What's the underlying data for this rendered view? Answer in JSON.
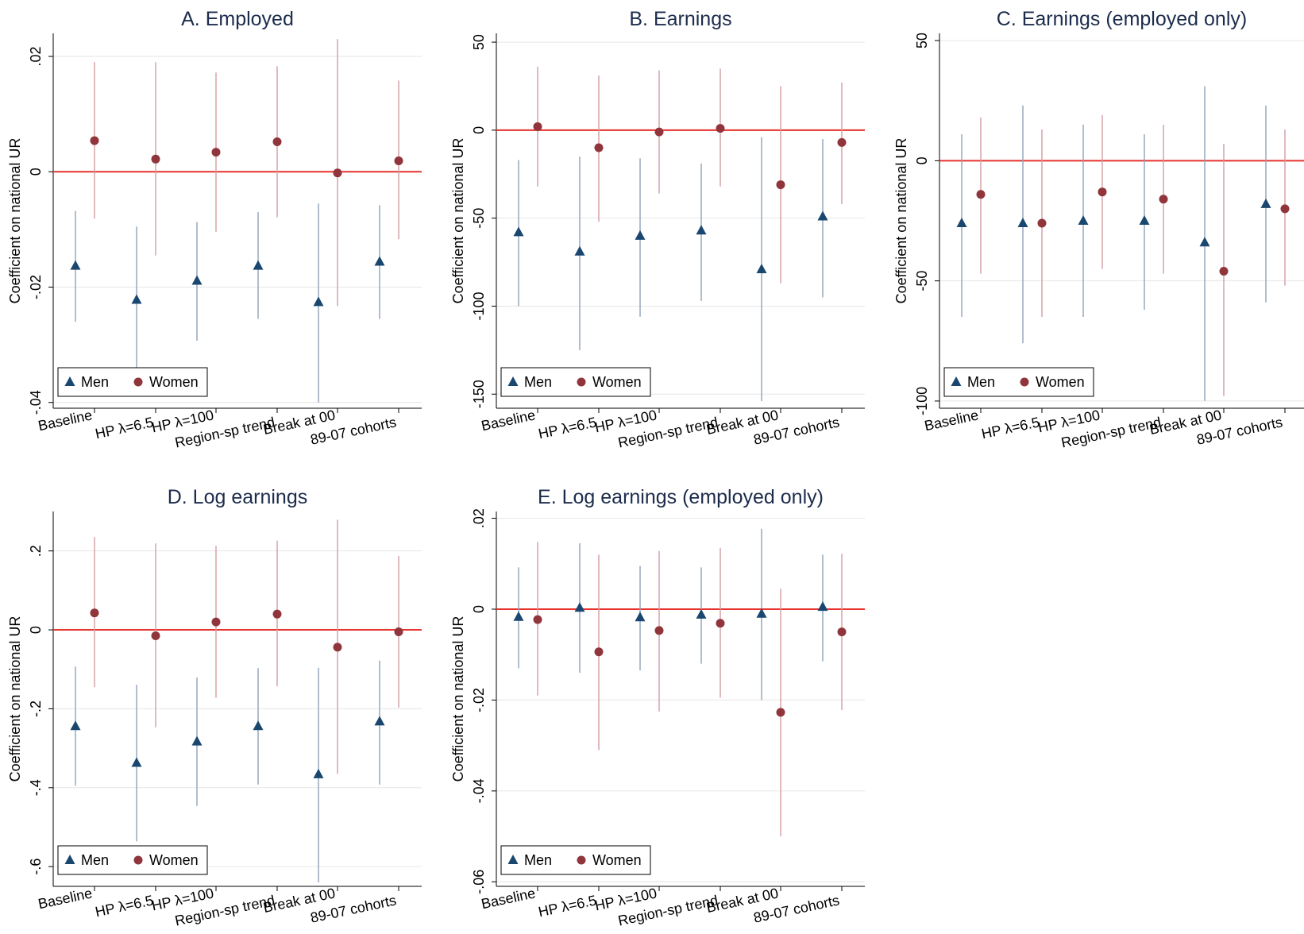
{
  "chart_data": [
    {
      "type": "scatter",
      "title": "A. Employed",
      "ylabel": "Coefficient on national UR",
      "categories": [
        "Baseline",
        "HP λ=6.5",
        "HP λ=100",
        "Region-sp trend",
        "Break at 00",
        "89-07 cohorts"
      ],
      "ylim": [
        -0.041,
        0.024
      ],
      "yticks": [
        0.02,
        0,
        -0.02,
        -0.04
      ],
      "ytick_labels": [
        ".02",
        "0",
        "-.02",
        "-.04"
      ],
      "reference_line": 0,
      "legend": [
        "Men",
        "Women"
      ],
      "legend_position": "bottom-left",
      "series": [
        {
          "name": "Men",
          "marker": "triangle",
          "color": "#1a476f",
          "values": [
            -0.0163,
            -0.0222,
            -0.0189,
            -0.0163,
            -0.0226,
            -0.0156
          ],
          "ci_low": [
            -0.026,
            -0.035,
            -0.0293,
            -0.0255,
            -0.04,
            -0.0255
          ],
          "ci_high": [
            -0.0068,
            -0.0095,
            -0.0087,
            -0.007,
            -0.0055,
            -0.0058
          ]
        },
        {
          "name": "Women",
          "marker": "circle",
          "color": "#90353b",
          "values": [
            0.0054,
            0.0022,
            0.0034,
            0.0052,
            -0.0002,
            0.0019
          ],
          "ci_low": [
            -0.0081,
            -0.0145,
            -0.0104,
            -0.0079,
            -0.0233,
            -0.0117
          ],
          "ci_high": [
            0.019,
            0.019,
            0.0172,
            0.0183,
            0.023,
            0.0158
          ]
        }
      ]
    },
    {
      "type": "scatter",
      "title": "B. Earnings",
      "ylabel": "Coefficient on national UR",
      "categories": [
        "Baseline",
        "HP λ=6.5",
        "HP λ=100",
        "Region-sp trend",
        "Break at 00",
        "89-07 cohorts"
      ],
      "ylim": [
        -158,
        55
      ],
      "yticks": [
        50,
        0,
        -50,
        -100,
        -150
      ],
      "ytick_labels": [
        "50",
        "0",
        "-50",
        "-100",
        "-150"
      ],
      "reference_line": 0,
      "legend": [
        "Men",
        "Women"
      ],
      "legend_position": "bottom-left",
      "series": [
        {
          "name": "Men",
          "marker": "triangle",
          "color": "#1a476f",
          "values": [
            -58,
            -69,
            -60,
            -57,
            -79,
            -49
          ],
          "ci_low": [
            -100,
            -125,
            -106,
            -97,
            -154,
            -95
          ],
          "ci_high": [
            -17,
            -15,
            -16,
            -19,
            -4,
            -5
          ]
        },
        {
          "name": "Women",
          "marker": "circle",
          "color": "#90353b",
          "values": [
            2,
            -10,
            -1,
            1,
            -31,
            -7
          ],
          "ci_low": [
            -32,
            -52,
            -36,
            -32,
            -87,
            -42
          ],
          "ci_high": [
            36,
            31,
            34,
            35,
            25,
            27
          ]
        }
      ]
    },
    {
      "type": "scatter",
      "title": "C. Earnings (employed only)",
      "ylabel": "Coefficient on national UR",
      "categories": [
        "Baseline",
        "HP λ=6.5",
        "HP λ=100",
        "Region-sp trend",
        "Break at 00",
        "89-07 cohorts"
      ],
      "ylim": [
        -103,
        53
      ],
      "yticks": [
        50,
        0,
        -50,
        -100
      ],
      "ytick_labels": [
        "50",
        "0",
        "-50",
        "-100"
      ],
      "reference_line": 0,
      "legend": [
        "Men",
        "Women"
      ],
      "legend_position": "bottom-left",
      "series": [
        {
          "name": "Men",
          "marker": "triangle",
          "color": "#1a476f",
          "values": [
            -26,
            -26,
            -25,
            -25,
            -34,
            -18
          ],
          "ci_low": [
            -65,
            -76,
            -65,
            -62,
            -100,
            -59
          ],
          "ci_high": [
            11,
            23,
            15,
            11,
            31,
            23
          ]
        },
        {
          "name": "Women",
          "marker": "circle",
          "color": "#90353b",
          "values": [
            -14,
            -26,
            -13,
            -16,
            -46,
            -20
          ],
          "ci_low": [
            -47,
            -65,
            -45,
            -47,
            -98,
            -52
          ],
          "ci_high": [
            18,
            13,
            19,
            15,
            7,
            13
          ]
        }
      ]
    },
    {
      "type": "scatter",
      "title": "D. Log earnings",
      "ylabel": "Coefficient on national UR",
      "categories": [
        "Baseline",
        "HP λ=6.5",
        "HP λ=100",
        "Region-sp trend",
        "Break at 00",
        "89-07 cohorts"
      ],
      "ylim": [
        -0.65,
        0.3
      ],
      "yticks": [
        0.2,
        0,
        -0.2,
        -0.4,
        -0.6
      ],
      "ytick_labels": [
        ".2",
        "0",
        "-.2",
        "-.4",
        "-.6"
      ],
      "reference_line": 0,
      "legend": [
        "Men",
        "Women"
      ],
      "legend_position": "bottom-left",
      "series": [
        {
          "name": "Men",
          "marker": "triangle",
          "color": "#1a476f",
          "values": [
            -0.244,
            -0.337,
            -0.283,
            -0.244,
            -0.366,
            -0.232
          ],
          "ci_low": [
            -0.395,
            -0.536,
            -0.446,
            -0.392,
            -0.64,
            -0.392
          ],
          "ci_high": [
            -0.093,
            -0.139,
            -0.121,
            -0.097,
            -0.096,
            -0.078
          ]
        },
        {
          "name": "Women",
          "marker": "circle",
          "color": "#90353b",
          "values": [
            0.043,
            -0.015,
            0.02,
            0.04,
            -0.044,
            -0.005
          ],
          "ci_low": [
            -0.145,
            -0.247,
            -0.172,
            -0.143,
            -0.365,
            -0.197
          ],
          "ci_high": [
            0.235,
            0.219,
            0.213,
            0.226,
            0.279,
            0.187
          ]
        }
      ]
    },
    {
      "type": "scatter",
      "title": "E. Log earnings (employed only)",
      "ylabel": "Coefficient on national UR",
      "categories": [
        "Baseline",
        "HP λ=6.5",
        "HP λ=100",
        "Region-sp trend",
        "Break at 00",
        "89-07 cohorts"
      ],
      "ylim": [
        -0.061,
        0.0215
      ],
      "yticks": [
        0.02,
        0,
        -0.02,
        -0.04,
        -0.06
      ],
      "ytick_labels": [
        ".02",
        "0",
        "-.02",
        "-.04",
        "-.06"
      ],
      "reference_line": 0,
      "legend": [
        "Men",
        "Women"
      ],
      "legend_position": "bottom-left",
      "series": [
        {
          "name": "Men",
          "marker": "triangle",
          "color": "#1a476f",
          "values": [
            -0.0017,
            0.0003,
            -0.0018,
            -0.0012,
            -0.001,
            0.0005
          ],
          "ci_low": [
            -0.013,
            -0.014,
            -0.0135,
            -0.012,
            -0.02,
            -0.0115
          ],
          "ci_high": [
            0.0092,
            0.0145,
            0.0095,
            0.0092,
            0.0177,
            0.012
          ]
        },
        {
          "name": "Women",
          "marker": "circle",
          "color": "#90353b",
          "values": [
            -0.0023,
            -0.0094,
            -0.0047,
            -0.0031,
            -0.0227,
            -0.005
          ],
          "ci_low": [
            -0.019,
            -0.031,
            -0.0225,
            -0.0195,
            -0.05,
            -0.0222
          ],
          "ci_high": [
            0.0148,
            0.012,
            0.0128,
            0.0135,
            0.0045,
            0.0122
          ]
        }
      ]
    }
  ],
  "colors": {
    "men": "#1a476f",
    "women": "#90353b",
    "men_ci": "#8fa3b8",
    "women_ci": "#d29da2",
    "reference_line": "#e8322c",
    "gridline": "#e6e6e6",
    "title": "#1c2c4c"
  }
}
